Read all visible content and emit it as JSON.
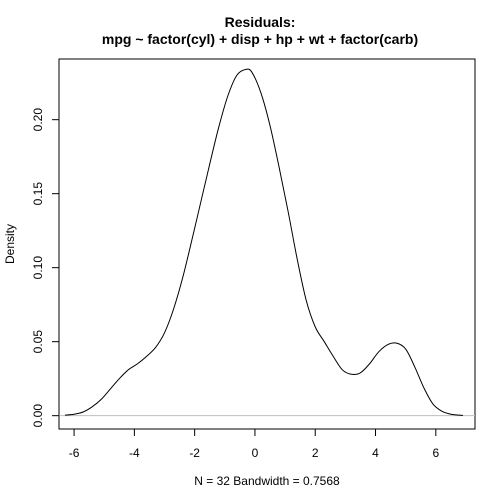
{
  "chart_data": {
    "type": "line",
    "title": "Residuals:",
    "subtitle": "mpg ~ factor(cyl) + disp + hp + wt + factor(carb)",
    "xlabel": "N = 32   Bandwidth = 0.7568",
    "ylabel": "Density",
    "xlim": [
      -6.5,
      7.3
    ],
    "ylim": [
      -0.009,
      0.241
    ],
    "xticks": [
      -6,
      -4,
      -2,
      0,
      2,
      4,
      6
    ],
    "xtick_labels": [
      "-6",
      "-4",
      "-2",
      "0",
      "2",
      "4",
      "6"
    ],
    "yticks": [
      0.0,
      0.05,
      0.1,
      0.15,
      0.2
    ],
    "ytick_labels": [
      "0.00",
      "0.05",
      "0.10",
      "0.15",
      "0.20"
    ],
    "grid": false,
    "baseline": {
      "y": 0,
      "color": "#bebebe"
    },
    "line_color": "#000000",
    "series": [
      {
        "x": [
          -6.3,
          -6.0,
          -5.7,
          -5.4,
          -5.1,
          -4.8,
          -4.5,
          -4.2,
          -3.9,
          -3.6,
          -3.3,
          -3.0,
          -2.7,
          -2.4,
          -2.1,
          -1.8,
          -1.5,
          -1.2,
          -0.9,
          -0.6,
          -0.3,
          -0.1,
          0.2,
          0.5,
          0.8,
          1.1,
          1.4,
          1.7,
          2.0,
          2.3,
          2.6,
          2.9,
          3.2,
          3.5,
          3.8,
          4.1,
          4.4,
          4.7,
          5.0,
          5.3,
          5.6,
          5.9,
          6.2,
          6.5,
          6.9
        ],
        "y": [
          0.0004,
          0.001,
          0.0025,
          0.006,
          0.011,
          0.018,
          0.025,
          0.031,
          0.035,
          0.04,
          0.046,
          0.056,
          0.072,
          0.093,
          0.118,
          0.144,
          0.17,
          0.195,
          0.216,
          0.23,
          0.234,
          0.232,
          0.218,
          0.196,
          0.168,
          0.138,
          0.106,
          0.078,
          0.06,
          0.05,
          0.04,
          0.031,
          0.028,
          0.029,
          0.035,
          0.043,
          0.048,
          0.049,
          0.045,
          0.033,
          0.019,
          0.008,
          0.003,
          0.001,
          0.0002
        ]
      }
    ]
  }
}
